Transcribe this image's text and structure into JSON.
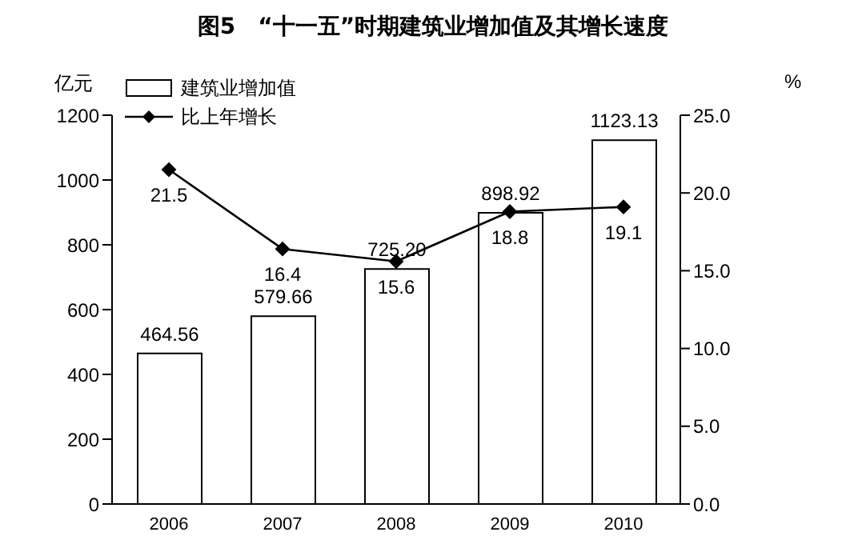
{
  "chart_data": {
    "type": "bar",
    "title": "图5　“十一五”时期建筑业增加值及其增长速度",
    "ylabel": "亿元",
    "y2label": "%",
    "categories": [
      "2006",
      "2007",
      "2008",
      "2009",
      "2010"
    ],
    "series": [
      {
        "name": "建筑业增加值",
        "color": "#ffffff",
        "values": [
          464.56,
          579.66,
          725.2,
          898.92,
          1123.13
        ],
        "value_labels": [
          "464.56",
          "579.66",
          "725.20",
          "898.92",
          "1123.13"
        ]
      },
      {
        "name": "比上年增长",
        "type": "line",
        "axis": "y2",
        "color": "#000000",
        "marker": "diamond",
        "values": [
          21.5,
          16.4,
          15.6,
          18.8,
          19.1
        ],
        "value_labels": [
          "21.5",
          "16.4",
          "15.6",
          "18.8",
          "19.1"
        ]
      }
    ],
    "ylim": [
      0,
      1200
    ],
    "yticks": [
      0,
      200,
      400,
      600,
      800,
      1000,
      1200
    ],
    "y2lim": [
      0,
      25
    ],
    "y2ticks": [
      {
        "value": 0,
        "label": "0.0"
      },
      {
        "value": 5,
        "label": "5.0"
      },
      {
        "value": 10,
        "label": "10.0"
      },
      {
        "value": 15,
        "label": "15.0"
      },
      {
        "value": 20,
        "label": "20.0"
      },
      {
        "value": 25,
        "label": "25.0"
      }
    ],
    "legend": "top left"
  }
}
